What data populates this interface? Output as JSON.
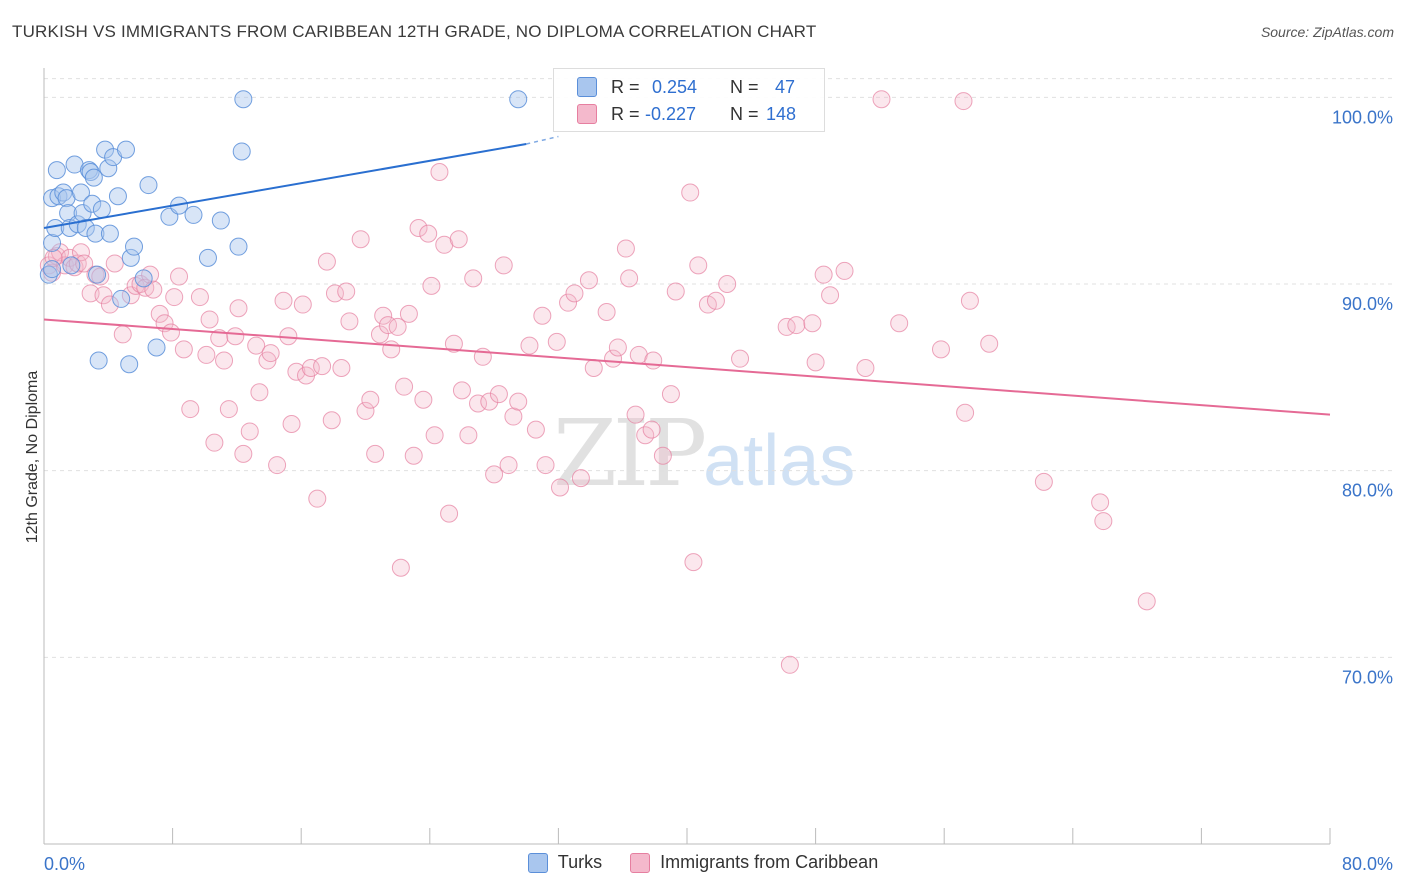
{
  "title": "TURKISH VS IMMIGRANTS FROM CARIBBEAN 12TH GRADE, NO DIPLOMA CORRELATION CHART",
  "source": "Source: ZipAtlas.com",
  "watermark": {
    "zip": "ZIP",
    "atlas": "atlas"
  },
  "colors": {
    "blue": "#5b8fd9",
    "blue_fill": "#a9c6ee",
    "blue_line": "#2a6fd0",
    "pink": "#e67fa0",
    "pink_fill": "#f4b9cc",
    "pink_line": "#e56a95",
    "tick_text": "#3a74c9",
    "grid": "#e0e0e0"
  },
  "stats": [
    {
      "r_label": "R =",
      "r_value": "0.254",
      "n_label": "N =",
      "n_value": "47"
    },
    {
      "r_label": "R =",
      "r_value": "-0.227",
      "n_label": "N =",
      "n_value": "148"
    }
  ],
  "legend": [
    {
      "name": "Turks"
    },
    {
      "name": "Immigrants from Caribbean"
    }
  ],
  "chart_data": {
    "type": "scatter",
    "title": "TURKISH VS IMMIGRANTS FROM CARIBBEAN 12TH GRADE, NO DIPLOMA CORRELATION CHART",
    "xlabel": "",
    "ylabel": "12th Grade, No Diploma",
    "xlim": [
      0,
      80
    ],
    "ylim": [
      60,
      102
    ],
    "x_tick_labels": [
      "0.0%",
      "80.0%"
    ],
    "y_ticks": [
      70,
      80,
      90,
      100
    ],
    "y_tick_labels": [
      "70.0%",
      "80.0%",
      "90.0%",
      "100.0%"
    ],
    "grid": "horizontal dashed",
    "legend_position": "bottom-center",
    "series": [
      {
        "name": "Turks",
        "trend": {
          "x": [
            0,
            30
          ],
          "y": [
            93.0,
            97.5
          ],
          "dashed_to": [
            32,
            97.9
          ]
        },
        "points": [
          [
            0.3,
            90.5
          ],
          [
            0.5,
            92.2
          ],
          [
            0.5,
            94.6
          ],
          [
            0.7,
            93.0
          ],
          [
            0.8,
            96.1
          ],
          [
            0.9,
            94.7
          ],
          [
            1.2,
            94.9
          ],
          [
            1.4,
            94.6
          ],
          [
            1.5,
            93.8
          ],
          [
            1.6,
            93.0
          ],
          [
            1.7,
            91.0
          ],
          [
            1.9,
            96.4
          ],
          [
            2.1,
            93.2
          ],
          [
            2.3,
            94.9
          ],
          [
            2.4,
            93.8
          ],
          [
            2.6,
            93.0
          ],
          [
            2.8,
            96.1
          ],
          [
            2.9,
            96.0
          ],
          [
            3.0,
            94.3
          ],
          [
            3.1,
            95.7
          ],
          [
            3.2,
            92.7
          ],
          [
            3.3,
            90.5
          ],
          [
            3.4,
            85.9
          ],
          [
            3.6,
            94.0
          ],
          [
            3.8,
            97.2
          ],
          [
            4.0,
            96.2
          ],
          [
            4.1,
            92.7
          ],
          [
            4.3,
            96.8
          ],
          [
            4.6,
            94.7
          ],
          [
            5.1,
            97.2
          ],
          [
            5.3,
            85.7
          ],
          [
            5.4,
            91.4
          ],
          [
            5.6,
            92.0
          ],
          [
            6.2,
            90.3
          ],
          [
            6.5,
            95.3
          ],
          [
            7.0,
            86.6
          ],
          [
            7.8,
            93.6
          ],
          [
            8.4,
            94.2
          ],
          [
            9.3,
            93.7
          ],
          [
            10.2,
            91.4
          ],
          [
            11.0,
            93.4
          ],
          [
            12.1,
            92.0
          ],
          [
            12.3,
            97.1
          ],
          [
            12.4,
            99.9
          ],
          [
            29.5,
            99.9
          ],
          [
            0.5,
            90.8
          ],
          [
            4.8,
            89.2
          ]
        ]
      },
      {
        "name": "Immigrants from Caribbean",
        "trend": {
          "x": [
            0,
            80
          ],
          "y": [
            88.1,
            83.0
          ]
        },
        "points": [
          [
            0.3,
            91.0
          ],
          [
            0.5,
            90.6
          ],
          [
            0.8,
            91.5
          ],
          [
            1.0,
            91.7
          ],
          [
            1.3,
            91.0
          ],
          [
            1.6,
            91.4
          ],
          [
            1.9,
            90.9
          ],
          [
            2.1,
            91.1
          ],
          [
            2.3,
            91.7
          ],
          [
            2.5,
            91.1
          ],
          [
            2.9,
            89.5
          ],
          [
            3.2,
            90.5
          ],
          [
            3.5,
            90.4
          ],
          [
            3.7,
            89.4
          ],
          [
            4.1,
            88.9
          ],
          [
            4.4,
            91.1
          ],
          [
            4.9,
            87.3
          ],
          [
            5.4,
            89.4
          ],
          [
            5.7,
            89.9
          ],
          [
            6.0,
            90.0
          ],
          [
            6.3,
            89.8
          ],
          [
            6.6,
            90.5
          ],
          [
            6.8,
            89.7
          ],
          [
            7.2,
            88.4
          ],
          [
            7.5,
            87.9
          ],
          [
            7.9,
            87.4
          ],
          [
            8.1,
            89.3
          ],
          [
            8.4,
            90.4
          ],
          [
            8.7,
            86.5
          ],
          [
            9.1,
            83.3
          ],
          [
            9.7,
            89.3
          ],
          [
            10.1,
            86.2
          ],
          [
            10.3,
            88.1
          ],
          [
            10.6,
            81.5
          ],
          [
            10.9,
            87.1
          ],
          [
            11.2,
            85.9
          ],
          [
            11.5,
            83.3
          ],
          [
            11.9,
            87.2
          ],
          [
            12.1,
            88.7
          ],
          [
            12.4,
            80.9
          ],
          [
            12.8,
            82.1
          ],
          [
            13.2,
            86.7
          ],
          [
            13.4,
            84.2
          ],
          [
            13.9,
            85.9
          ],
          [
            14.1,
            86.3
          ],
          [
            14.5,
            80.3
          ],
          [
            14.9,
            89.1
          ],
          [
            15.2,
            87.2
          ],
          [
            15.4,
            82.5
          ],
          [
            15.7,
            85.3
          ],
          [
            16.1,
            88.9
          ],
          [
            16.3,
            85.1
          ],
          [
            16.6,
            85.5
          ],
          [
            17.0,
            78.5
          ],
          [
            17.3,
            85.6
          ],
          [
            17.6,
            91.2
          ],
          [
            17.9,
            82.7
          ],
          [
            18.1,
            89.5
          ],
          [
            18.5,
            85.5
          ],
          [
            18.8,
            89.6
          ],
          [
            19.0,
            88.0
          ],
          [
            19.7,
            92.4
          ],
          [
            20.0,
            83.2
          ],
          [
            20.3,
            83.8
          ],
          [
            20.6,
            80.9
          ],
          [
            20.9,
            87.3
          ],
          [
            21.1,
            88.3
          ],
          [
            21.4,
            87.8
          ],
          [
            21.6,
            86.5
          ],
          [
            22.0,
            87.7
          ],
          [
            22.2,
            74.8
          ],
          [
            22.4,
            84.5
          ],
          [
            22.7,
            88.4
          ],
          [
            23.0,
            80.8
          ],
          [
            23.3,
            93.0
          ],
          [
            23.6,
            83.8
          ],
          [
            23.9,
            92.7
          ],
          [
            24.1,
            89.9
          ],
          [
            24.3,
            81.9
          ],
          [
            24.6,
            96.0
          ],
          [
            24.9,
            92.1
          ],
          [
            25.2,
            77.7
          ],
          [
            25.5,
            86.8
          ],
          [
            25.8,
            92.4
          ],
          [
            26.0,
            84.3
          ],
          [
            26.4,
            81.9
          ],
          [
            26.7,
            90.3
          ],
          [
            27.0,
            83.6
          ],
          [
            27.3,
            86.1
          ],
          [
            27.7,
            83.7
          ],
          [
            28.0,
            79.8
          ],
          [
            28.3,
            84.1
          ],
          [
            28.6,
            91.0
          ],
          [
            28.9,
            80.3
          ],
          [
            29.2,
            82.9
          ],
          [
            29.5,
            83.7
          ],
          [
            30.2,
            86.7
          ],
          [
            30.6,
            82.2
          ],
          [
            31.0,
            88.3
          ],
          [
            31.2,
            80.3
          ],
          [
            31.9,
            86.9
          ],
          [
            32.1,
            79.1
          ],
          [
            32.6,
            89.0
          ],
          [
            33.0,
            89.5
          ],
          [
            33.4,
            79.6
          ],
          [
            33.9,
            90.2
          ],
          [
            34.2,
            85.5
          ],
          [
            35.0,
            88.5
          ],
          [
            35.4,
            86.0
          ],
          [
            35.7,
            86.6
          ],
          [
            36.2,
            91.9
          ],
          [
            36.4,
            90.3
          ],
          [
            36.8,
            83.0
          ],
          [
            37.0,
            86.2
          ],
          [
            37.4,
            81.9
          ],
          [
            37.8,
            82.2
          ],
          [
            37.9,
            85.9
          ],
          [
            38.5,
            80.8
          ],
          [
            39.0,
            84.1
          ],
          [
            39.3,
            89.6
          ],
          [
            40.2,
            94.9
          ],
          [
            40.4,
            75.1
          ],
          [
            40.7,
            91.0
          ],
          [
            41.3,
            88.9
          ],
          [
            41.8,
            89.1
          ],
          [
            42.5,
            90.0
          ],
          [
            43.3,
            86.0
          ],
          [
            46.2,
            87.7
          ],
          [
            46.4,
            69.6
          ],
          [
            46.8,
            87.8
          ],
          [
            47.8,
            87.9
          ],
          [
            48.0,
            85.8
          ],
          [
            48.5,
            90.5
          ],
          [
            48.9,
            89.4
          ],
          [
            49.8,
            90.7
          ],
          [
            51.1,
            85.5
          ],
          [
            52.1,
            99.9
          ],
          [
            53.2,
            87.9
          ],
          [
            55.8,
            86.5
          ],
          [
            57.2,
            99.8
          ],
          [
            57.3,
            83.1
          ],
          [
            57.6,
            89.1
          ],
          [
            58.8,
            86.8
          ],
          [
            62.2,
            79.4
          ],
          [
            65.7,
            78.3
          ],
          [
            65.9,
            77.3
          ],
          [
            68.6,
            73.0
          ],
          [
            0.6,
            91.4
          ]
        ]
      }
    ]
  }
}
